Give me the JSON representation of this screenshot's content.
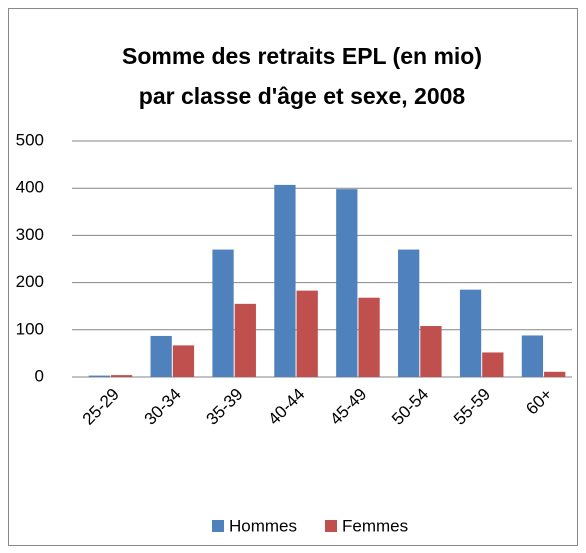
{
  "chart_data": {
    "type": "bar",
    "title": [
      "Somme des retraits EPL (en mio)",
      "par classe d'âge et sexe, 2008"
    ],
    "categories": [
      "25-29",
      "30-34",
      "35-39",
      "40-44",
      "45-49",
      "50-54",
      "55-59",
      "60+"
    ],
    "series": [
      {
        "name": "Hommes",
        "color": "#4f81bd",
        "values": [
          3,
          87,
          270,
          407,
          398,
          270,
          185,
          88
        ]
      },
      {
        "name": "Femmes",
        "color": "#c0504d",
        "values": [
          4,
          67,
          155,
          183,
          168,
          108,
          52,
          11
        ]
      }
    ],
    "ylim": [
      0,
      500
    ],
    "yticks": [
      0,
      100,
      200,
      300,
      400,
      500
    ],
    "grid": true,
    "legend": "bottom"
  }
}
